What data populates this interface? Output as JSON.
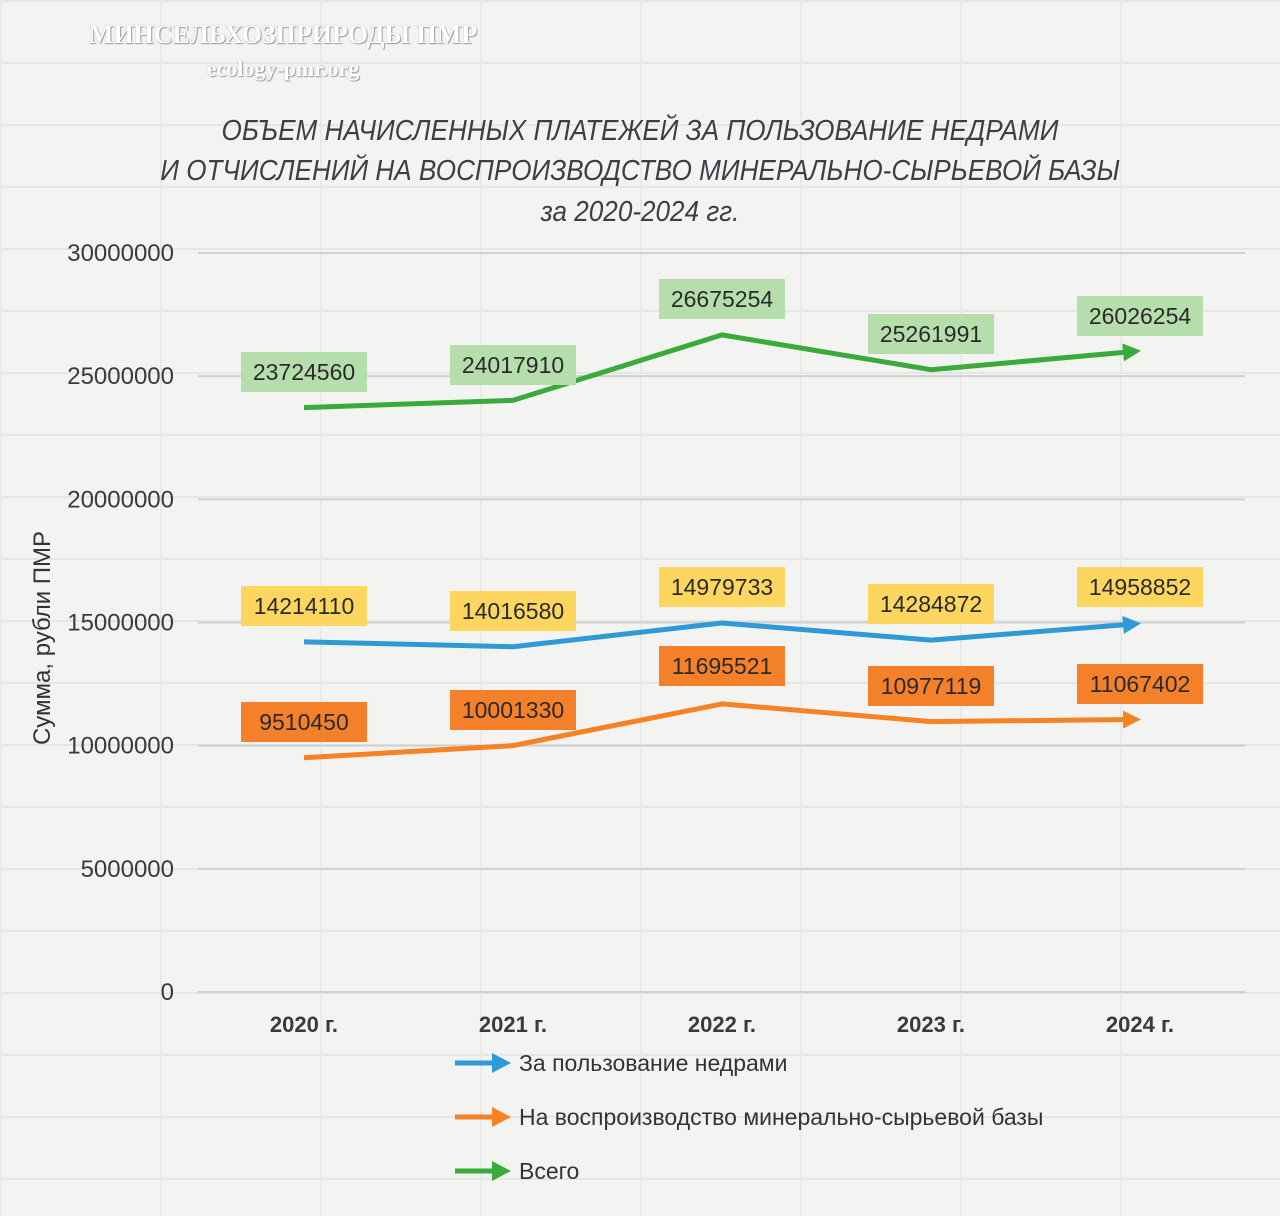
{
  "watermark": {
    "line1": "МИНСЕЛЬХОЗПРИРОДЫ ПМР",
    "line2": "ecology-pmr.org"
  },
  "chart_data": {
    "type": "line",
    "title": [
      "ОБЪЕМ НАЧИСЛЕННЫХ ПЛАТЕЖЕЙ ЗА ПОЛЬЗОВАНИЕ НЕДРАМИ",
      "И ОТЧИСЛЕНИЙ НА ВОСПРОИЗВОДСТВО МИНЕРАЛЬНО-СЫРЬЕВОЙ БАЗЫ",
      "за 2020-2024 гг."
    ],
    "ylabel": "Сумма, рубли ПМР",
    "xlabel": "",
    "categories": [
      "2020 г.",
      "2021 г.",
      "2022 г.",
      "2023 г.",
      "2024 г."
    ],
    "ylim": [
      0,
      30000000
    ],
    "yticks": [
      0,
      5000000,
      10000000,
      15000000,
      20000000,
      25000000,
      30000000
    ],
    "grid": true,
    "legend_position": "bottom",
    "series": [
      {
        "name": "За пользование недрами",
        "values": [
          14214110,
          14016580,
          14979733,
          14284872,
          14958852
        ],
        "labels": [
          "14214110",
          "14016580",
          "14979733",
          "14284872",
          "14958852"
        ],
        "color": "#2e9bd6",
        "label_bg": "#fcd65e"
      },
      {
        "name": "На воспроизводство минерально-сырьевой базы",
        "values": [
          9510450,
          10001330,
          11695521,
          10977119,
          11067402
        ],
        "labels": [
          "9510450",
          "10001330",
          "11695521",
          "10977119",
          "11067402"
        ],
        "color": "#f58223",
        "label_bg": "#f5802a"
      },
      {
        "name": "Всего",
        "values": [
          23724560,
          24017910,
          26675254,
          25261991,
          26026254
        ],
        "labels": [
          "23724560",
          "24017910",
          "26675254",
          "25261991",
          "26026254"
        ],
        "color": "#3aab3a",
        "label_bg": "#b6deac"
      }
    ]
  }
}
